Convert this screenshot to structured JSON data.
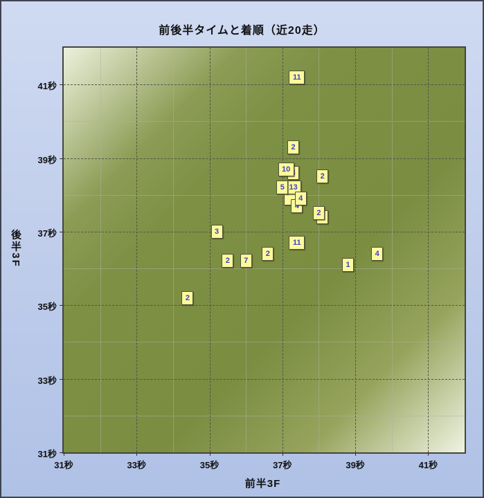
{
  "window": {
    "title": "前後半タイムと着順（近20走）"
  },
  "chart_data": {
    "type": "scatter",
    "title": "前後半タイムと着順（近20走）",
    "xlabel": "前半3F",
    "ylabel": "後半3F",
    "xlim": [
      31,
      42
    ],
    "ylim": [
      31,
      42
    ],
    "grid_step_seconds": 1,
    "grid": "on",
    "legend": "none",
    "x_ticks": [
      {
        "value": 31,
        "label": "31秒"
      },
      {
        "value": 33,
        "label": "33秒"
      },
      {
        "value": 35,
        "label": "35秒"
      },
      {
        "value": 37,
        "label": "37秒"
      },
      {
        "value": 39,
        "label": "39秒"
      },
      {
        "value": 41,
        "label": "41秒"
      }
    ],
    "y_ticks": [
      {
        "value": 31,
        "label": "31秒"
      },
      {
        "value": 33,
        "label": "33秒"
      },
      {
        "value": 35,
        "label": "35秒"
      },
      {
        "value": 37,
        "label": "37秒"
      },
      {
        "value": 39,
        "label": "39秒"
      },
      {
        "value": 41,
        "label": "41秒"
      }
    ],
    "points_note": "label = finishing position; empty label = box hidden behind another box; order is paint order (back to front)",
    "points": [
      {
        "x": 37.2,
        "y": 37.9,
        "label": ""
      },
      {
        "x": 37.3,
        "y": 38.2,
        "label": "13"
      },
      {
        "x": 37.0,
        "y": 38.2,
        "label": "5"
      },
      {
        "x": 37.4,
        "y": 37.7,
        "label": "4"
      },
      {
        "x": 37.5,
        "y": 37.9,
        "label": "4"
      },
      {
        "x": 37.3,
        "y": 38.6,
        "label": "3"
      },
      {
        "x": 37.1,
        "y": 38.7,
        "label": "10"
      },
      {
        "x": 38.1,
        "y": 37.4,
        "label": ""
      },
      {
        "x": 38.0,
        "y": 37.5,
        "label": "2"
      },
      {
        "x": 38.1,
        "y": 38.5,
        "label": "2"
      },
      {
        "x": 37.3,
        "y": 39.3,
        "label": "2"
      },
      {
        "x": 37.4,
        "y": 41.2,
        "label": "11"
      },
      {
        "x": 35.2,
        "y": 37.0,
        "label": "3"
      },
      {
        "x": 37.4,
        "y": 36.7,
        "label": "11"
      },
      {
        "x": 36.6,
        "y": 36.4,
        "label": "2"
      },
      {
        "x": 36.0,
        "y": 36.2,
        "label": "7"
      },
      {
        "x": 35.5,
        "y": 36.2,
        "label": "2"
      },
      {
        "x": 38.8,
        "y": 36.1,
        "label": "1"
      },
      {
        "x": 39.6,
        "y": 36.4,
        "label": "4"
      },
      {
        "x": 34.4,
        "y": 35.2,
        "label": "2"
      }
    ]
  },
  "colors": {
    "bg_top": "#CFDAF2",
    "bg_bottom": "#AFC1E6",
    "frame_border": "#3E4450",
    "plot_olive": "#7D9044",
    "plot_pale": "#ECF1DC",
    "plot_border": "#45453C",
    "grid_major": "#53534A",
    "grid_minor": "#ADB2A3",
    "marker_fill": "#FBFA9C",
    "marker_border": "#51513A",
    "marker_text": "#4242C2",
    "text": "#111111"
  }
}
